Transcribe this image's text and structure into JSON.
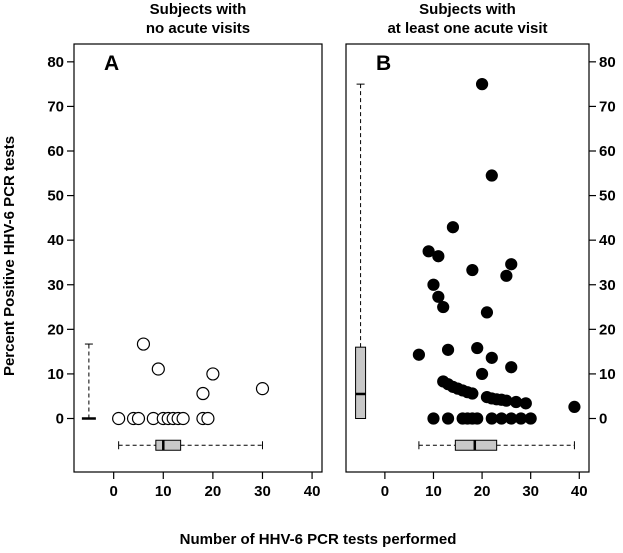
{
  "chart_data": {
    "type": "scatter",
    "ylabel": "Percent Positive HHV-6 PCR tests",
    "xlabel": "Number of HHV-6 PCR tests performed",
    "xlim": [
      -8,
      42
    ],
    "ylim": [
      -12,
      84
    ],
    "x_ticks": [
      0,
      10,
      20,
      30,
      40
    ],
    "y_ticks": [
      0,
      10,
      20,
      30,
      40,
      50,
      60,
      70,
      80
    ],
    "panels": [
      {
        "letter": "A",
        "title_lines": [
          "Subjects with",
          "no acute visits"
        ],
        "marker": "open-circle",
        "points": [
          {
            "x": 1,
            "y": 0
          },
          {
            "x": 4,
            "y": 0
          },
          {
            "x": 5,
            "y": 0
          },
          {
            "x": 6,
            "y": 16.7
          },
          {
            "x": 8,
            "y": 0
          },
          {
            "x": 9,
            "y": 11.1
          },
          {
            "x": 10,
            "y": 0
          },
          {
            "x": 11,
            "y": 0
          },
          {
            "x": 12,
            "y": 0
          },
          {
            "x": 13,
            "y": 0
          },
          {
            "x": 14,
            "y": 0
          },
          {
            "x": 18,
            "y": 5.6
          },
          {
            "x": 18,
            "y": 0
          },
          {
            "x": 19,
            "y": 0
          },
          {
            "x": 20,
            "y": 10
          },
          {
            "x": 30,
            "y": 6.7
          }
        ],
        "x_box": {
          "whisker_low": 1,
          "q1": 8.5,
          "median": 10,
          "q3": 13.5,
          "whisker_high": 30
        },
        "y_box": {
          "whisker_low": 0,
          "q1": 0,
          "median": 0,
          "q3": 0,
          "whisker_high": 16.7
        }
      },
      {
        "letter": "B",
        "title_lines": [
          "Subjects with",
          "at least one acute visit"
        ],
        "marker": "filled-circle",
        "points": [
          {
            "x": 7,
            "y": 14.3
          },
          {
            "x": 9,
            "y": 37.5
          },
          {
            "x": 10,
            "y": 30
          },
          {
            "x": 10,
            "y": 0
          },
          {
            "x": 11,
            "y": 36.4
          },
          {
            "x": 11,
            "y": 27.3
          },
          {
            "x": 12,
            "y": 25
          },
          {
            "x": 12,
            "y": 8.3
          },
          {
            "x": 13,
            "y": 15.4
          },
          {
            "x": 13,
            "y": 7.7
          },
          {
            "x": 13,
            "y": 0
          },
          {
            "x": 14,
            "y": 42.9
          },
          {
            "x": 14,
            "y": 7.1
          },
          {
            "x": 15,
            "y": 6.7
          },
          {
            "x": 16,
            "y": 6.3
          },
          {
            "x": 16,
            "y": 0
          },
          {
            "x": 17,
            "y": 5.9
          },
          {
            "x": 17,
            "y": 0
          },
          {
            "x": 18,
            "y": 33.3
          },
          {
            "x": 18,
            "y": 5.6
          },
          {
            "x": 18,
            "y": 0
          },
          {
            "x": 19,
            "y": 15.8
          },
          {
            "x": 19,
            "y": 0
          },
          {
            "x": 20,
            "y": 75
          },
          {
            "x": 20,
            "y": 10
          },
          {
            "x": 21,
            "y": 23.8
          },
          {
            "x": 21,
            "y": 4.8
          },
          {
            "x": 22,
            "y": 54.5
          },
          {
            "x": 22,
            "y": 13.6
          },
          {
            "x": 22,
            "y": 4.5
          },
          {
            "x": 22,
            "y": 0
          },
          {
            "x": 23,
            "y": 4.3
          },
          {
            "x": 24,
            "y": 4.2
          },
          {
            "x": 24,
            "y": 0
          },
          {
            "x": 25,
            "y": 32
          },
          {
            "x": 25,
            "y": 4
          },
          {
            "x": 26,
            "y": 34.6
          },
          {
            "x": 26,
            "y": 11.5
          },
          {
            "x": 26,
            "y": 0
          },
          {
            "x": 27,
            "y": 3.7
          },
          {
            "x": 28,
            "y": 0
          },
          {
            "x": 29,
            "y": 3.4
          },
          {
            "x": 30,
            "y": 0
          },
          {
            "x": 39,
            "y": 2.6
          }
        ],
        "x_box": {
          "whisker_low": 7,
          "q1": 14.5,
          "median": 18.5,
          "q3": 23,
          "whisker_high": 39
        },
        "y_box": {
          "whisker_low": 0,
          "q1": 0,
          "median": 5.5,
          "q3": 16,
          "whisker_high": 75
        }
      }
    ]
  }
}
